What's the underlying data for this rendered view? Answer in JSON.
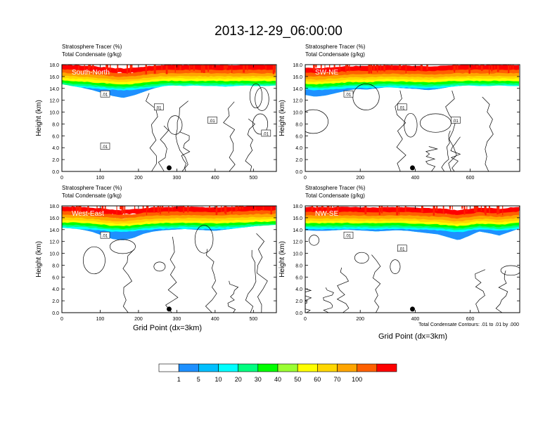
{
  "figure_title": "2013-12-29_06:00:00",
  "panel_subtitle_1": "Stratosphere Tracer    (%)",
  "panel_subtitle_2": "Total Condensate   (g/kg)",
  "ylabel": "Height (km)",
  "xlabel": "Grid Point (dx=3km)",
  "contour_note": "Total Condensate Contours: .01 to .01 by .000",
  "colorbar": {
    "labels": [
      "1",
      "5",
      "10",
      "20",
      "30",
      "40",
      "50",
      "60",
      "70",
      "100"
    ],
    "colors": [
      "#ffffff",
      "#1e90ff",
      "#00bfff",
      "#00ffff",
      "#00ff80",
      "#00ff00",
      "#9aff32",
      "#ffff00",
      "#ffd700",
      "#ffa500",
      "#ff6000",
      "#ff0000"
    ]
  },
  "chart_data": [
    {
      "type": "contour",
      "panel_label": "South-North",
      "xlim": [
        0,
        560
      ],
      "ylim": [
        0,
        18
      ],
      "xticks": [
        0,
        100,
        200,
        300,
        400,
        500
      ],
      "yticks": [
        "0.0",
        "2.0",
        "4.0",
        "6.0",
        "8.0",
        "10.0",
        "12.0",
        "14.0",
        "16.0",
        "18.0"
      ],
      "contour_labels": [
        ".01",
        ".01",
        ".01",
        ".01",
        ".01"
      ],
      "marker": {
        "x": 280,
        "y": 0.6
      },
      "tracer_top_km": [
        15.3,
        15.0,
        14.7,
        14.3,
        13.8,
        13.3,
        13.0,
        13.4,
        14.0,
        14.6,
        15.0,
        15.1,
        15.0,
        15.1,
        15.0,
        15.0,
        14.9,
        15.0,
        15.1,
        15.0,
        15.0,
        15.1
      ]
    },
    {
      "type": "contour",
      "panel_label": "SW-NE",
      "xlim": [
        0,
        780
      ],
      "ylim": [
        0,
        18
      ],
      "xticks": [
        0,
        200,
        400,
        600
      ],
      "yticks": [
        "0.0",
        "2.0",
        "4.0",
        "6.0",
        "8.0",
        "10.0",
        "12.0",
        "14.0",
        "16.0",
        "18.0"
      ],
      "contour_labels": [
        ".01",
        ".01",
        ".01"
      ],
      "marker": {
        "x": 390,
        "y": 0.6
      },
      "tracer_top_km": [
        13.5,
        13.2,
        13.4,
        13.8,
        14.2,
        14.5,
        14.4,
        14.6,
        14.8,
        14.7,
        14.6,
        14.5,
        14.3,
        14.5,
        14.8,
        15.0,
        15.1,
        15.0,
        15.0,
        15.1,
        15.0,
        15.0
      ]
    },
    {
      "type": "contour",
      "panel_label": "West-East",
      "xlim": [
        0,
        560
      ],
      "ylim": [
        0,
        18
      ],
      "xticks": [
        0,
        100,
        200,
        300,
        400,
        500
      ],
      "yticks": [
        "0.0",
        "2.0",
        "4.0",
        "6.0",
        "8.0",
        "10.0",
        "12.0",
        "14.0",
        "16.0",
        "18.0"
      ],
      "contour_labels": [
        ".01"
      ],
      "marker": {
        "x": 280,
        "y": 0.6
      },
      "tracer_top_km": [
        14.9,
        14.8,
        14.6,
        14.2,
        13.6,
        13.0,
        12.8,
        13.2,
        13.9,
        14.3,
        14.5,
        14.6,
        14.7,
        14.6,
        14.5,
        14.4,
        14.6,
        14.8,
        15.0,
        15.2,
        15.3,
        15.4
      ]
    },
    {
      "type": "contour",
      "panel_label": "NW-SE",
      "xlim": [
        0,
        780
      ],
      "ylim": [
        0,
        18
      ],
      "xticks": [
        0,
        200,
        400,
        600
      ],
      "yticks": [
        "0.0",
        "2.0",
        "4.0",
        "6.0",
        "8.0",
        "10.0",
        "12.0",
        "14.0",
        "16.0",
        "18.0"
      ],
      "contour_labels": [
        ".01",
        ".01"
      ],
      "marker": {
        "x": 390,
        "y": 0.6
      },
      "tracer_top_km": [
        14.5,
        14.4,
        14.4,
        14.5,
        14.6,
        14.5,
        14.4,
        14.3,
        14.4,
        14.5,
        14.4,
        14.2,
        14.0,
        13.8,
        13.3,
        12.8,
        13.5,
        14.3,
        14.0,
        13.6,
        14.2,
        14.8
      ]
    }
  ]
}
